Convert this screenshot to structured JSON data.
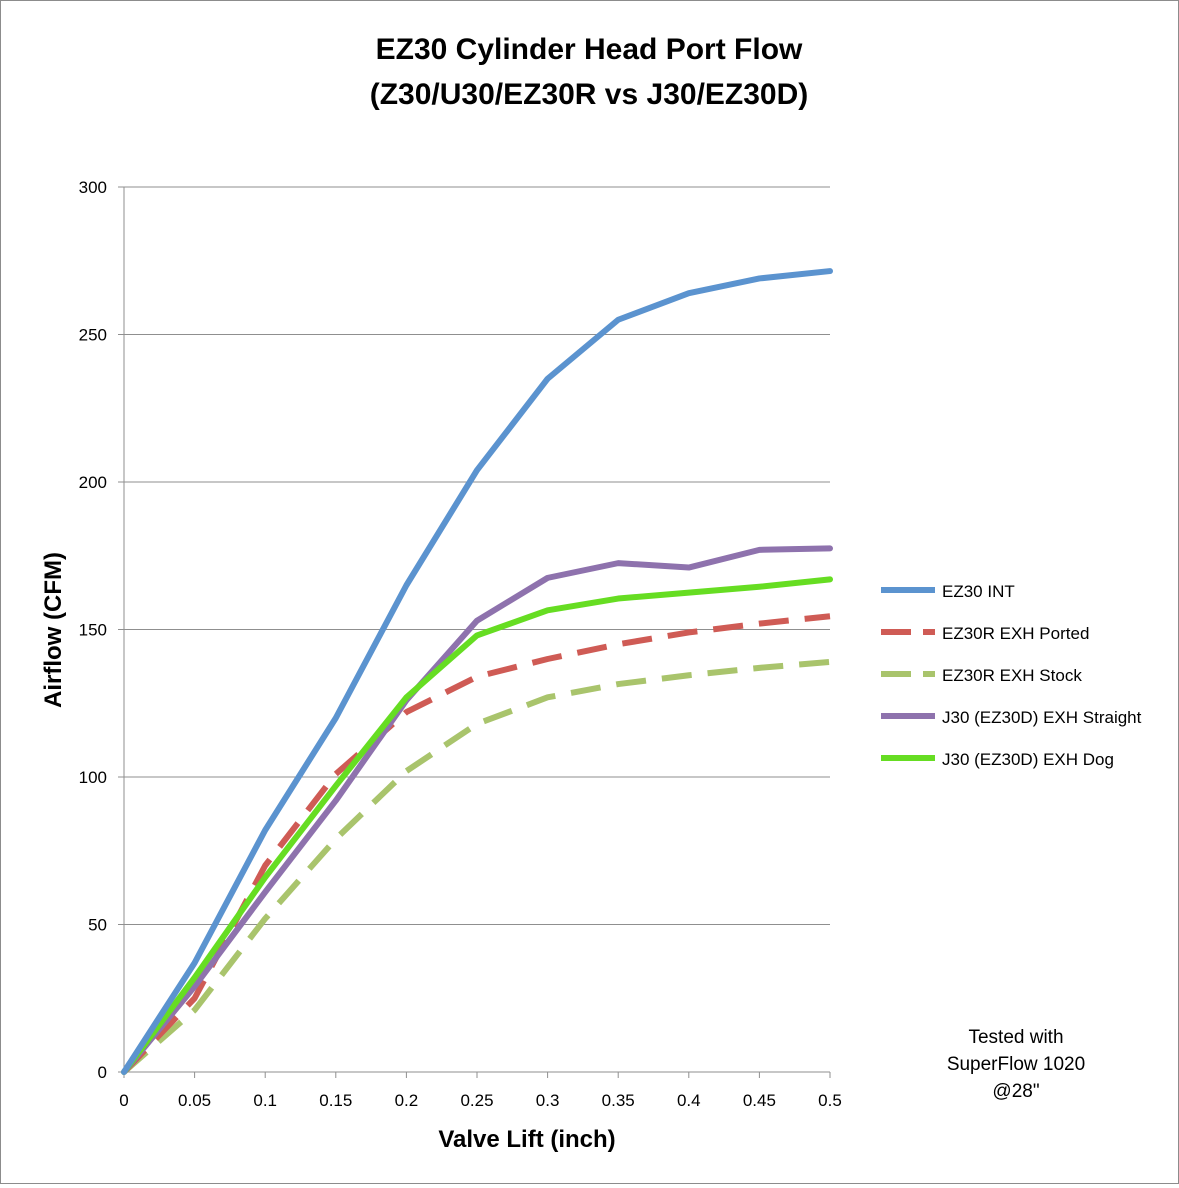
{
  "chart_data": {
    "type": "line",
    "title_lines": [
      "EZ30 Cylinder Head Port Flow",
      "(Z30/U30/EZ30R vs J30/EZ30D)"
    ],
    "xlabel": "Valve Lift (inch)",
    "ylabel": "Airflow (CFM)",
    "x": [
      0,
      0.05,
      0.1,
      0.15,
      0.2,
      0.25,
      0.3,
      0.35,
      0.4,
      0.45,
      0.5
    ],
    "x_tick_labels": [
      "0",
      "0.05",
      "0.1",
      "0.15",
      "0.2",
      "0.25",
      "0.3",
      "0.35",
      "0.4",
      "0.45",
      "0.5"
    ],
    "xlim": [
      0,
      0.5
    ],
    "y_ticks": [
      0,
      50,
      100,
      150,
      200,
      250,
      300
    ],
    "y_tick_labels": [
      "0",
      "50",
      "100",
      "150",
      "200",
      "250",
      "300"
    ],
    "ylim": [
      0,
      300
    ],
    "grid": "horizontal",
    "legend_position": "right",
    "series": [
      {
        "name": "EZ30 INT",
        "color": "#5b93cf",
        "dashed": false,
        "values": [
          0,
          37,
          82,
          120,
          165,
          204,
          235,
          255,
          264,
          269,
          271.5
        ]
      },
      {
        "name": "EZ30R EXH Ported",
        "color": "#cf5b55",
        "dashed": true,
        "values": [
          0,
          25,
          70,
          101,
          122,
          134,
          140,
          145,
          149,
          152,
          154.5
        ]
      },
      {
        "name": "EZ30R EXH Stock",
        "color": "#a9c46c",
        "dashed": true,
        "values": [
          0,
          21,
          52,
          79,
          102,
          118,
          127,
          131.5,
          134.5,
          137,
          139
        ]
      },
      {
        "name": "J30 (EZ30D) EXH Straight",
        "color": "#8e72ad",
        "dashed": false,
        "values": [
          0,
          29,
          61,
          92,
          126,
          153,
          167.5,
          172.5,
          171,
          177,
          177.5
        ]
      },
      {
        "name": "J30 (EZ30D) EXH Dog",
        "color": "#66dd22",
        "dashed": false,
        "values": [
          0,
          32,
          66,
          97,
          127,
          148,
          156.5,
          160.5,
          162.5,
          164.5,
          167
        ]
      }
    ],
    "annotation_lines": [
      "Tested with",
      "SuperFlow 1020",
      "@28\""
    ]
  }
}
